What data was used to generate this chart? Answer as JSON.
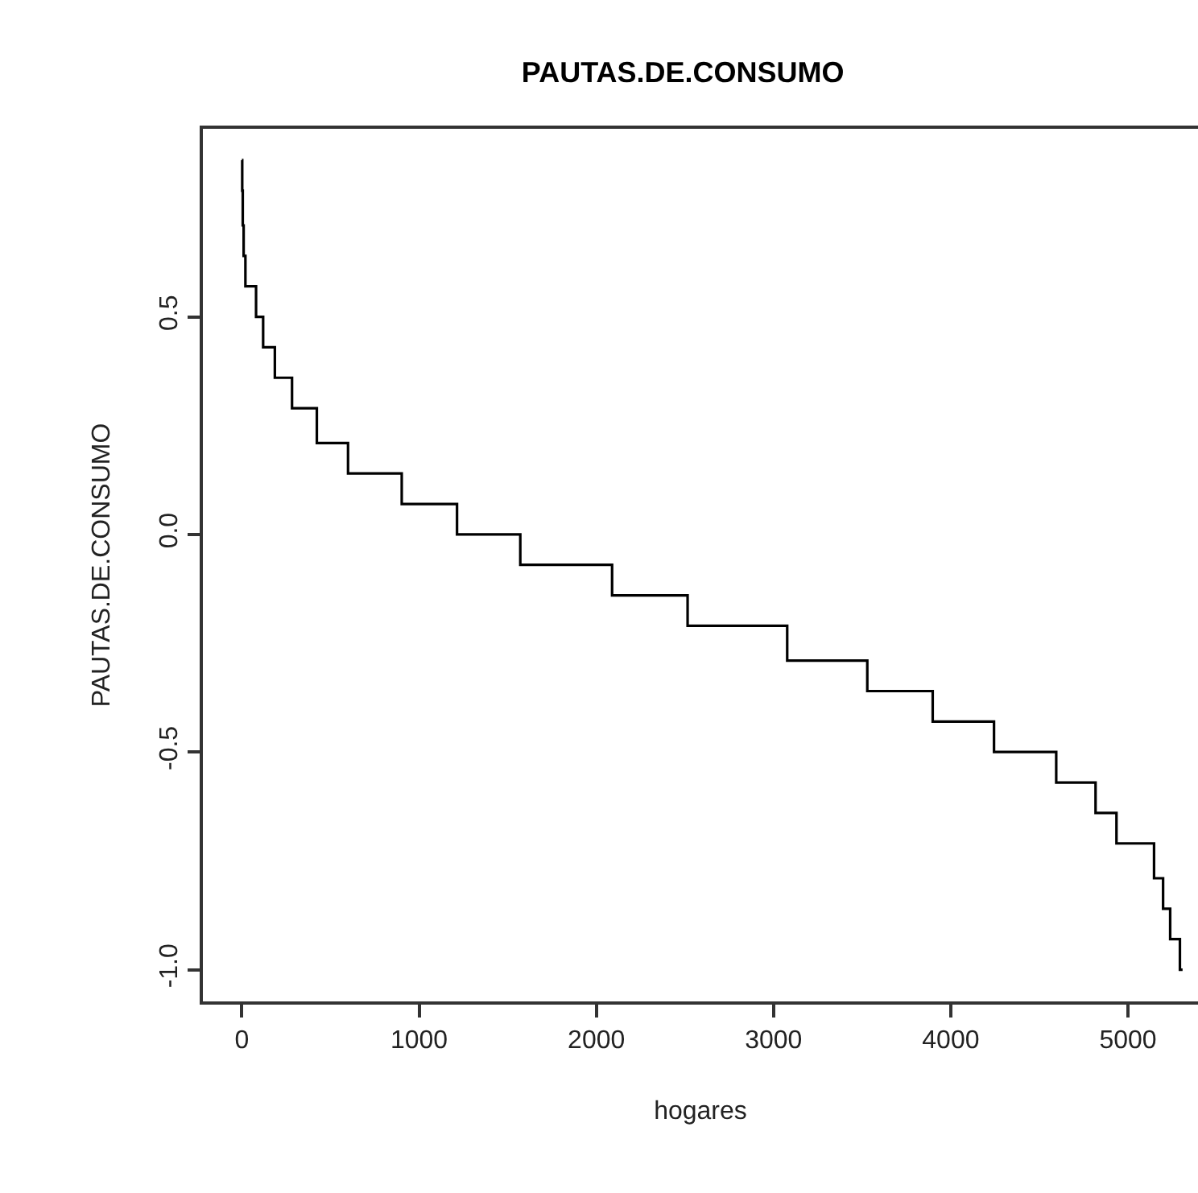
{
  "chart_data": {
    "type": "step",
    "title": "PAUTAS.DE.CONSUMO",
    "xlabel": "hogares",
    "ylabel": "PAUTAS.DE.CONSUMO",
    "x": [
      0,
      2,
      5,
      10,
      20,
      80,
      120,
      186,
      283,
      423,
      599,
      902,
      1214,
      1571,
      2089,
      2515,
      3077,
      3529,
      3898,
      4244,
      4595,
      4817,
      4935,
      5147,
      5198,
      5238,
      5293,
      5308
    ],
    "values": [
      0.86,
      0.79,
      0.71,
      0.64,
      0.57,
      0.5,
      0.43,
      0.36,
      0.29,
      0.21,
      0.14,
      0.07,
      0,
      -0.07,
      -0.14,
      -0.21,
      -0.29,
      -0.36,
      -0.43,
      -0.5,
      -0.57,
      -0.64,
      -0.71,
      -0.79,
      -0.86,
      -0.93,
      -1.0,
      -1.0
    ],
    "color": "#000000",
    "xlim": [
      -220,
      5395
    ],
    "ylim": [
      -1.073,
      0.932
    ],
    "xticks": [
      0,
      1000,
      2000,
      3000,
      4000,
      5000
    ],
    "yticks": [
      {
        "value": -1,
        "label": "-1.0"
      },
      {
        "value": -0.5,
        "label": "-0.5"
      },
      {
        "value": 0,
        "label": "0.0"
      },
      {
        "value": 0.5,
        "label": "0.5"
      }
    ],
    "line_style": "solid"
  }
}
